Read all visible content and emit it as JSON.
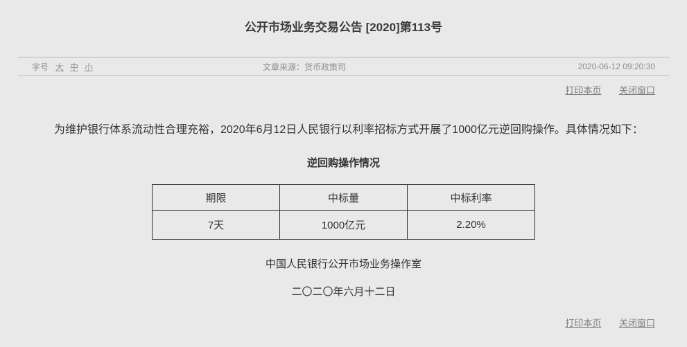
{
  "page": {
    "background": "#e9e9e9",
    "link_color": "#7d7d7d",
    "meta_text_color": "#8e8e8e",
    "table_border_color": "#2f2f2f"
  },
  "header": {
    "title": "公开市场业务交易公告 [2020]第113号"
  },
  "meta": {
    "font_size_label": "字号",
    "font_sizes": [
      "大",
      "中",
      "小"
    ],
    "source_label": "文章来源：",
    "source_value": "货币政策司",
    "timestamp": "2020-06-12 09:20:30"
  },
  "actions": {
    "print_label": "打印本页",
    "close_label": "关闭窗口"
  },
  "article": {
    "paragraph": "为维护银行体系流动性合理充裕，2020年6月12日人民银行以利率招标方式开展了1000亿元逆回购操作。具体情况如下：",
    "table_title": "逆回购操作情况",
    "signature": "中国人民银行公开市场业务操作室",
    "date": "二〇二〇年六月十二日"
  },
  "table": {
    "headers": [
      "期限",
      "中标量",
      "中标利率"
    ],
    "rows": [
      [
        "7天",
        "1000亿元",
        "2.20%"
      ]
    ]
  }
}
